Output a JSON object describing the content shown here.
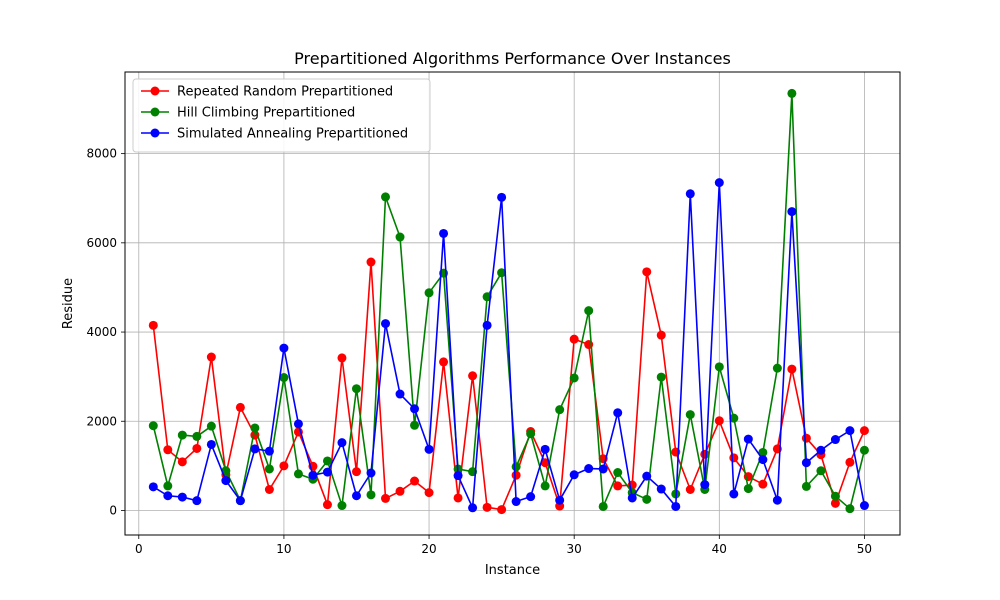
{
  "chart_data": {
    "type": "line",
    "title": "Prepartitioned Algorithms Performance Over Instances",
    "xlabel": "Instance",
    "ylabel": "Residue",
    "xlim": [
      -0.95,
      52.45
    ],
    "ylim": [
      -550,
      9830
    ],
    "xticks": [
      0,
      10,
      20,
      30,
      40,
      50
    ],
    "yticks": [
      0,
      2000,
      4000,
      6000,
      8000
    ],
    "grid": true,
    "legend_position": "top-left",
    "x": [
      1,
      2,
      3,
      4,
      5,
      6,
      7,
      8,
      9,
      10,
      11,
      12,
      13,
      14,
      15,
      16,
      17,
      18,
      19,
      20,
      21,
      22,
      23,
      24,
      25,
      26,
      27,
      28,
      29,
      30,
      31,
      32,
      33,
      34,
      35,
      36,
      37,
      38,
      39,
      40,
      41,
      42,
      43,
      44,
      45,
      46,
      47,
      48,
      49,
      50
    ],
    "series": [
      {
        "name": "Repeated Random Prepartitioned",
        "color": "#ff0000",
        "values": [
          4150,
          1360,
          1090,
          1390,
          3440,
          800,
          2310,
          1690,
          470,
          1000,
          1760,
          990,
          130,
          3420,
          870,
          5570,
          270,
          430,
          660,
          400,
          3330,
          280,
          3020,
          70,
          20,
          790,
          1770,
          1070,
          100,
          3840,
          3720,
          1160,
          550,
          570,
          5350,
          3930,
          1310,
          470,
          1260,
          2010,
          1180,
          760,
          590,
          1380,
          3170,
          1620,
          1250,
          160,
          1080,
          1790
        ]
      },
      {
        "name": "Hill Climbing Prepartitioned",
        "color": "#008000",
        "values": [
          1900,
          550,
          1690,
          1660,
          1890,
          890,
          220,
          1850,
          930,
          2980,
          820,
          700,
          1110,
          110,
          2730,
          350,
          7030,
          6130,
          1910,
          4880,
          5320,
          930,
          870,
          4790,
          5330,
          980,
          1720,
          550,
          2260,
          2970,
          4480,
          90,
          850,
          400,
          250,
          2990,
          370,
          2150,
          470,
          3220,
          2070,
          490,
          1300,
          3190,
          9350,
          540,
          890,
          320,
          40,
          1350
        ]
      },
      {
        "name": "Simulated Annealing Prepartitioned",
        "color": "#0000ff",
        "values": [
          530,
          330,
          300,
          220,
          1480,
          670,
          220,
          1380,
          1330,
          3640,
          1940,
          790,
          860,
          1520,
          330,
          840,
          4190,
          2610,
          2280,
          1370,
          6210,
          780,
          60,
          4150,
          7020,
          200,
          310,
          1370,
          230,
          800,
          940,
          930,
          2190,
          280,
          770,
          480,
          90,
          7100,
          580,
          7350,
          370,
          1600,
          1140,
          230,
          6700,
          1070,
          1350,
          1590,
          1790,
          110
        ]
      }
    ]
  }
}
